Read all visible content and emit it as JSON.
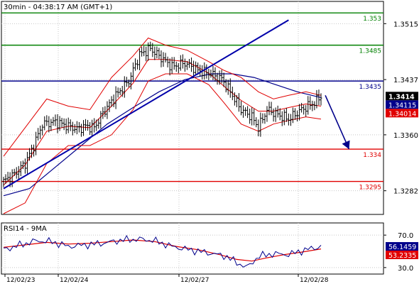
{
  "header": {
    "title": "30min - 04:38:17 AM (GMT+1)"
  },
  "rsi_header": {
    "title": "RSI14 - 9MA"
  },
  "colors": {
    "frame": "#000000",
    "grid": "#c8c8c8",
    "candle": "#000000",
    "bollinger": "#e00000",
    "ma_blue": "#00008b",
    "trendline": "#0000aa",
    "arrow": "#00008b",
    "green_level": "#008000",
    "blue_level": "#00008b",
    "red_level": "#e00000",
    "price_badge_bg": "#000000",
    "price_badge_text": "#ffffff",
    "blue_badge_bg": "#00008b",
    "red_badge_bg": "#e00000",
    "rsi_line": "#00008b",
    "rsi_ma": "#e00000"
  },
  "chart_data": [
    {
      "type": "candlestick",
      "x_tick_labels": [
        "12/02/23",
        "12/02/24",
        "12/02/27",
        "12/02/28"
      ],
      "y_ticks": [
        1.3515,
        1.3437,
        1.336,
        1.3282
      ],
      "y_tick_labels": [
        "1.3515",
        "1.3437",
        "1.3360",
        "1.3282"
      ],
      "ylim": [
        1.3249,
        1.3546
      ],
      "levels": [
        {
          "value": 1.353,
          "label": "1.353",
          "color": "green"
        },
        {
          "value": 1.3485,
          "label": "1.3485",
          "color": "green"
        },
        {
          "value": 1.3435,
          "label": "1.3435",
          "color": "blue"
        },
        {
          "value": 1.334,
          "label": "1.334",
          "color": "red"
        },
        {
          "value": 1.3295,
          "label": "1.3295",
          "color": "red"
        }
      ],
      "badges": [
        {
          "value": 1.3414,
          "label": "1.3414",
          "style": "black"
        },
        {
          "value": 1.34115,
          "label": "1.34115",
          "style": "blue"
        },
        {
          "value": 1.34014,
          "label": "1.34014",
          "style": "red"
        }
      ],
      "trendline": {
        "from": [
          0,
          1.3285
        ],
        "to": [
          132,
          1.352
        ]
      },
      "forecast_arrow": {
        "from": [
          149,
          1.3415
        ],
        "to": [
          160,
          1.334
        ]
      },
      "close_path": [
        [
          0,
          1.3295
        ],
        [
          5,
          1.3305
        ],
        [
          10,
          1.332
        ],
        [
          14,
          1.3345
        ],
        [
          18,
          1.3375
        ],
        [
          24,
          1.3378
        ],
        [
          30,
          1.3372
        ],
        [
          34,
          1.3368
        ],
        [
          38,
          1.3372
        ],
        [
          42,
          1.337
        ],
        [
          46,
          1.339
        ],
        [
          52,
          1.3415
        ],
        [
          58,
          1.3435
        ],
        [
          63,
          1.3472
        ],
        [
          68,
          1.348
        ],
        [
          72,
          1.347
        ],
        [
          78,
          1.3455
        ],
        [
          84,
          1.346
        ],
        [
          90,
          1.345
        ],
        [
          96,
          1.3445
        ],
        [
          101,
          1.3438
        ],
        [
          105,
          1.342
        ],
        [
          110,
          1.3395
        ],
        [
          115,
          1.3385
        ],
        [
          118,
          1.337
        ],
        [
          122,
          1.3395
        ],
        [
          127,
          1.3388
        ],
        [
          132,
          1.3382
        ],
        [
          138,
          1.3395
        ],
        [
          144,
          1.3405
        ],
        [
          147,
          1.3414
        ]
      ],
      "bollinger_upper_path": [
        [
          0,
          1.333
        ],
        [
          10,
          1.337
        ],
        [
          20,
          1.341
        ],
        [
          30,
          1.34
        ],
        [
          40,
          1.3395
        ],
        [
          50,
          1.344
        ],
        [
          60,
          1.347
        ],
        [
          67,
          1.3495
        ],
        [
          75,
          1.3485
        ],
        [
          85,
          1.3478
        ],
        [
          95,
          1.3462
        ],
        [
          102,
          1.345
        ],
        [
          110,
          1.344
        ],
        [
          118,
          1.342
        ],
        [
          125,
          1.341
        ],
        [
          132,
          1.3415
        ],
        [
          140,
          1.342
        ],
        [
          147,
          1.3415
        ]
      ],
      "bollinger_lower_path": [
        [
          0,
          1.325
        ],
        [
          10,
          1.3265
        ],
        [
          20,
          1.332
        ],
        [
          30,
          1.3345
        ],
        [
          40,
          1.3345
        ],
        [
          50,
          1.336
        ],
        [
          60,
          1.3395
        ],
        [
          67,
          1.3435
        ],
        [
          75,
          1.3445
        ],
        [
          85,
          1.3445
        ],
        [
          95,
          1.343
        ],
        [
          102,
          1.3405
        ],
        [
          110,
          1.3375
        ],
        [
          118,
          1.3365
        ],
        [
          125,
          1.3375
        ],
        [
          132,
          1.338
        ],
        [
          140,
          1.3385
        ],
        [
          147,
          1.3382
        ]
      ],
      "bollinger_mid_path": [
        [
          0,
          1.329
        ],
        [
          10,
          1.3318
        ],
        [
          20,
          1.3365
        ],
        [
          30,
          1.3372
        ],
        [
          40,
          1.337
        ],
        [
          50,
          1.34
        ],
        [
          60,
          1.3432
        ],
        [
          67,
          1.3465
        ],
        [
          75,
          1.3465
        ],
        [
          85,
          1.3462
        ],
        [
          95,
          1.3446
        ],
        [
          102,
          1.3428
        ],
        [
          110,
          1.3408
        ],
        [
          118,
          1.3393
        ],
        [
          125,
          1.3393
        ],
        [
          132,
          1.3398
        ],
        [
          140,
          1.3403
        ],
        [
          147,
          1.34
        ]
      ],
      "ma_path": [
        [
          0,
          1.3275
        ],
        [
          12,
          1.3285
        ],
        [
          24,
          1.3315
        ],
        [
          36,
          1.3345
        ],
        [
          48,
          1.3375
        ],
        [
          60,
          1.3398
        ],
        [
          72,
          1.342
        ],
        [
          84,
          1.3437
        ],
        [
          96,
          1.3445
        ],
        [
          106,
          1.3445
        ],
        [
          116,
          1.344
        ],
        [
          126,
          1.343
        ],
        [
          136,
          1.342
        ],
        [
          147,
          1.3412
        ]
      ]
    },
    {
      "type": "line",
      "name": "RSI14 - 9MA",
      "y_ticks": [
        70,
        30
      ],
      "y_tick_labels": [
        "70.0",
        "30.0"
      ],
      "ylim": [
        22,
        85
      ],
      "badges": [
        {
          "value": 56.1459,
          "label": "56.1459",
          "style": "blue"
        },
        {
          "value": 53.2335,
          "label": "53.2335",
          "style": "red"
        }
      ],
      "rsi_path": [
        [
          0,
          52
        ],
        [
          8,
          58
        ],
        [
          15,
          63
        ],
        [
          22,
          62
        ],
        [
          30,
          56
        ],
        [
          38,
          58
        ],
        [
          46,
          60
        ],
        [
          55,
          64
        ],
        [
          64,
          65
        ],
        [
          70,
          63
        ],
        [
          78,
          56
        ],
        [
          86,
          52
        ],
        [
          95,
          48
        ],
        [
          103,
          44
        ],
        [
          108,
          36
        ],
        [
          113,
          30
        ],
        [
          118,
          44
        ],
        [
          125,
          47
        ],
        [
          132,
          46
        ],
        [
          140,
          52
        ],
        [
          147,
          56
        ]
      ],
      "rsi_ma_path": [
        [
          0,
          55
        ],
        [
          10,
          58
        ],
        [
          20,
          61
        ],
        [
          30,
          59
        ],
        [
          40,
          60
        ],
        [
          50,
          62
        ],
        [
          60,
          64
        ],
        [
          70,
          62
        ],
        [
          80,
          56
        ],
        [
          90,
          52
        ],
        [
          100,
          46
        ],
        [
          108,
          40
        ],
        [
          115,
          38
        ],
        [
          122,
          42
        ],
        [
          130,
          46
        ],
        [
          138,
          49
        ],
        [
          147,
          53
        ]
      ]
    }
  ]
}
